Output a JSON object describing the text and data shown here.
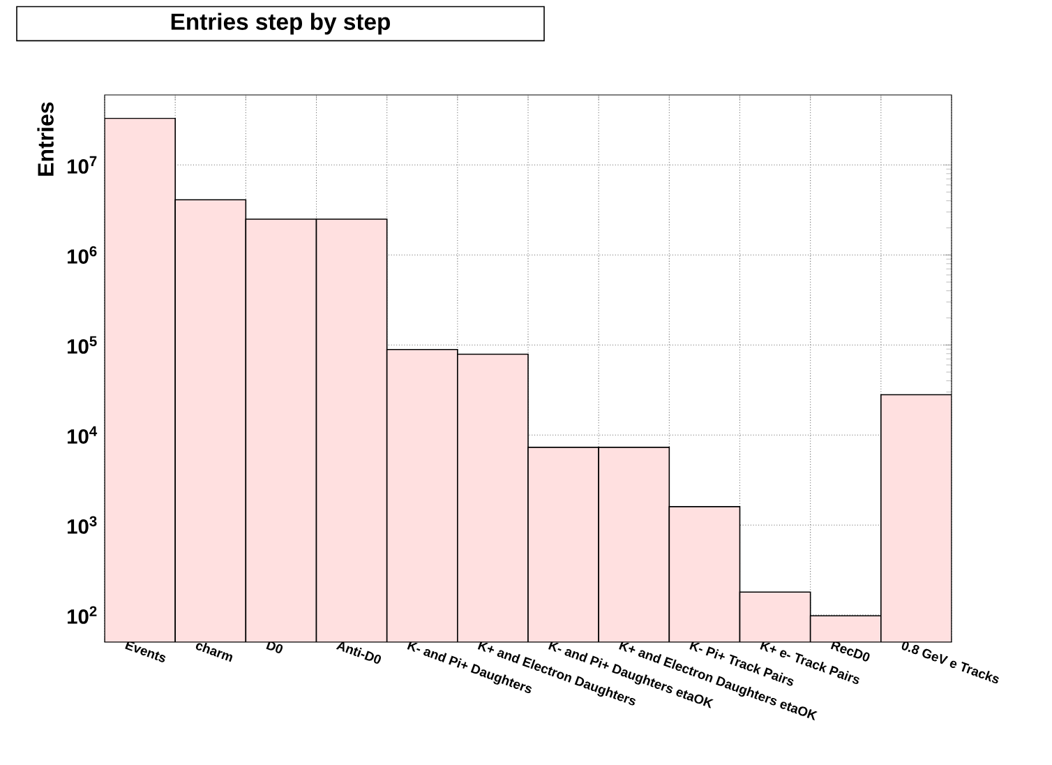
{
  "chart_data": {
    "type": "bar",
    "title": "Entries step by step",
    "ylabel": "Entries",
    "categories": [
      "Events",
      "charm",
      "D0",
      "Anti-D0",
      "K- and Pi+ Daughters",
      "K+ and Electron Daughters",
      "K- and Pi+ Daughters etaOK",
      "K+ and Electron Daughters etaOK",
      "K- Pi+ Track Pairs",
      "K+ e- Track Pairs",
      "RecD0",
      "0.8 GeV e Tracks"
    ],
    "values": [
      33000000,
      4100000,
      2500000,
      2500000,
      89000,
      79000,
      7300,
      7300,
      1600,
      180,
      98,
      28000
    ],
    "color": "#ffe0e0",
    "log": true,
    "ylim": [
      50,
      60000000
    ],
    "yticks": [
      {
        "value": 100,
        "label": "10$^{2}$"
      },
      {
        "value": 1000,
        "label": "10$^{3}$"
      },
      {
        "value": 10000,
        "label": "10$^{4}$"
      },
      {
        "value": 100000,
        "label": "10$^{5}$"
      },
      {
        "value": 1000000,
        "label": "10$^{6}$"
      },
      {
        "value": 10000000,
        "label": "10$^{7}$"
      }
    ],
    "grid": true
  }
}
